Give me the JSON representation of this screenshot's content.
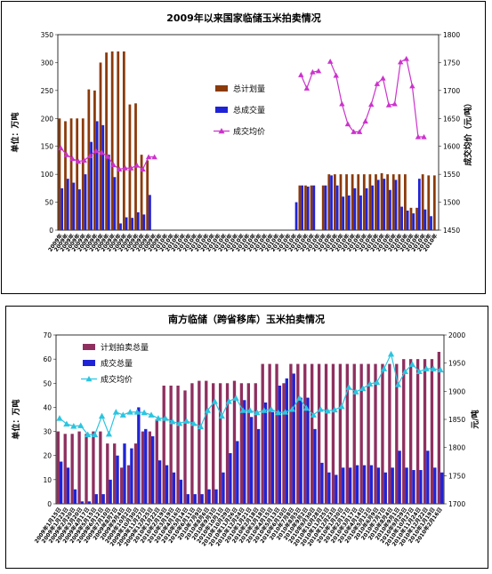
{
  "chart_data": [
    {
      "type": "bar",
      "title": "2009年以来国家临储玉米拍卖情况",
      "ylabel": "单位：万吨",
      "y2label": "成交均价（元/吨）",
      "ylim": [
        0,
        350
      ],
      "y2lim": [
        1450,
        1800
      ],
      "yticks": [
        "0",
        "50",
        "100",
        "150",
        "200",
        "250",
        "300",
        "350"
      ],
      "y2ticks": [
        "1450",
        "1500",
        "1550",
        "1600",
        "1650",
        "1700",
        "1750",
        "1800"
      ],
      "legend_position": "right",
      "series": [
        {
          "name": "总计划量",
          "color": "#8B3A0A",
          "values": [
            200,
            195,
            200,
            200,
            200,
            252,
            250,
            300,
            318,
            320,
            320,
            320,
            225,
            227,
            135,
            125,
            0,
            0,
            0,
            0,
            0,
            0,
            0,
            0,
            0,
            0,
            0,
            0,
            0,
            0,
            0,
            0,
            0,
            0,
            0,
            0,
            0,
            0,
            0,
            0,
            0,
            80,
            80,
            80,
            0,
            80,
            100,
            100,
            100,
            100,
            100,
            100,
            100,
            100,
            100,
            102,
            100,
            100,
            100,
            100,
            40,
            40,
            100,
            98,
            98
          ]
        },
        {
          "name": "总成交量",
          "color": "#1F23D6",
          "values": [
            75,
            92,
            85,
            73,
            100,
            158,
            195,
            188,
            135,
            95,
            12,
            23,
            22,
            32,
            28,
            63,
            0,
            0,
            0,
            0,
            0,
            0,
            0,
            0,
            0,
            0,
            0,
            0,
            0,
            0,
            0,
            0,
            0,
            0,
            0,
            0,
            0,
            0,
            0,
            0,
            50,
            80,
            78,
            80,
            0,
            80,
            98,
            80,
            60,
            62,
            75,
            62,
            75,
            80,
            90,
            92,
            72,
            90,
            42,
            35,
            30,
            92,
            37,
            25,
            0
          ]
        },
        {
          "name": "成交均价",
          "color": "#CC33CC",
          "marker": "triangle",
          "values": [
            1597,
            1585,
            1578,
            1573,
            1575,
            1583,
            1592,
            1589,
            1582,
            1567,
            1559,
            1561,
            1561,
            1566,
            1559,
            1581,
            1581,
            null,
            null,
            null,
            null,
            null,
            null,
            null,
            null,
            null,
            null,
            null,
            null,
            null,
            null,
            null,
            null,
            null,
            null,
            null,
            null,
            null,
            null,
            null,
            null,
            1728,
            1704,
            1733,
            1735,
            null,
            1752,
            1727,
            1676,
            1640,
            1626,
            1626,
            1645,
            1675,
            1712,
            1722,
            1674,
            1676,
            1751,
            1757,
            1708,
            1617,
            1617,
            null,
            null
          ]
        }
      ],
      "categories": [
        "2009年",
        "2009年",
        "2009年",
        "2009年",
        "2009年",
        "2009年",
        "2009年",
        "2009年",
        "2009年",
        "2009年",
        "2009年",
        "2009年",
        "2009年",
        "2009年",
        "2009年",
        "2009年",
        "2009年",
        "2009年",
        "2010年",
        "2010年",
        "2010年",
        "2010年",
        "2010年",
        "2010年",
        "2010年",
        "2010年",
        "2010年",
        "2010年",
        "2010年",
        "2010年",
        "2010年",
        "2010年",
        "2010年",
        "2010年",
        "2010年",
        "2010年",
        "2010年",
        "2010年",
        "2010年",
        "2010年",
        "2010年",
        "2010年",
        "2010年",
        "2010年",
        "2010年",
        "2010年",
        "2010年",
        "2010年",
        "2010年",
        "2010年",
        "2010年",
        "2010年",
        "2010年",
        "2010年",
        "2010年",
        "2010年",
        "2010年",
        "2010年",
        "2010年",
        "2010年",
        "2010年",
        "2010年",
        "2010年",
        "2010年",
        "2010年"
      ]
    },
    {
      "type": "bar",
      "title": "南方临储（跨省移库）玉米拍卖情况",
      "ylabel": "单位：万吨",
      "y2label": "元/吨",
      "ylim": [
        0,
        70
      ],
      "y2lim": [
        1700,
        2000
      ],
      "yticks": [
        "0",
        "10",
        "20",
        "30",
        "40",
        "50",
        "60",
        "70"
      ],
      "y2ticks": [
        "1700",
        "1750",
        "1800",
        "1850",
        "1900",
        "1950",
        "2000"
      ],
      "legend_position": "top-left",
      "series": [
        {
          "name": "计划拍卖总量",
          "color": "#8E2F5F",
          "values": [
            30,
            29,
            29,
            30,
            29,
            30,
            30,
            25,
            25,
            15,
            16,
            25,
            30,
            30,
            35,
            49,
            49,
            49,
            47,
            50,
            51,
            51,
            50,
            50,
            50,
            51,
            50,
            50,
            50,
            58,
            58,
            58,
            50,
            58,
            58,
            58,
            58,
            58,
            58,
            58,
            58,
            58,
            58,
            58,
            58,
            58,
            58,
            58,
            58,
            60,
            60,
            60,
            60,
            60,
            63
          ]
        },
        {
          "name": "成交总量",
          "color": "#1F23D6",
          "values": [
            17.5,
            15,
            6,
            1,
            1,
            4,
            4,
            10,
            20,
            25,
            23,
            40,
            31,
            28,
            18,
            16,
            13,
            10,
            4,
            4,
            4,
            6,
            6,
            13,
            21,
            26,
            43,
            36,
            31,
            42,
            38,
            49,
            52,
            54,
            44,
            44,
            31,
            17,
            13,
            12,
            15,
            15,
            16,
            16,
            16,
            15,
            13,
            15,
            22,
            15,
            14,
            14,
            22,
            15,
            13
          ]
        },
        {
          "name": "成交均价",
          "color": "#2BC5E0",
          "marker": "triangle",
          "values": [
            1852,
            1842,
            1838,
            1839,
            1823,
            1823,
            1856,
            1824,
            1863,
            1858,
            1863,
            1863,
            1862,
            1858,
            1852,
            1852,
            1846,
            1843,
            1847,
            1843,
            1837,
            1866,
            1882,
            1856,
            1882,
            1888,
            1866,
            1866,
            1862,
            1866,
            1868,
            1862,
            1863,
            1868,
            1888,
            1870,
            1858,
            1868,
            1865,
            1867,
            1873,
            1907,
            1899,
            1905,
            1913,
            1916,
            1940,
            1966,
            1912,
            1935,
            1948,
            1935,
            1940,
            1940,
            1938
          ]
        }
      ],
      "categories": [
        "2009年1月15日",
        "2009年1月23日",
        "2009年2月20日",
        "2009年3月20日",
        "2009年4月17日",
        "2009年5月15日",
        "2009年6月12日",
        "2009年7月10日",
        "2009年8月7日",
        "2009年9月4日",
        "2009年10月2日",
        "2009年10月30日",
        "2009年11月27日",
        "2009年12月25日",
        "2010年1月22日",
        "2010年2月19日",
        "2010年3月19日",
        "2010年4月16日",
        "2010年5月14日",
        "2010年6月11日",
        "2010年7月9日",
        "2010年8月6日",
        "2010年9月3日",
        "2010年10月1日",
        "2010年10月29日",
        "2010年11月26日",
        "2010年12月24日",
        "2010年1月21日",
        "2010年2月18日",
        "2010年3月18日",
        "2010年4月15日",
        "2010年5月13日",
        "2010年6月10日",
        "2010年7月8日",
        "2010年8月5日",
        "2010年9月2日",
        "2010年9月30日",
        "2010年10月28日",
        "2010年11月25日",
        "2010年12月23日",
        "2010年1月20日",
        "2010年2月17日",
        "2010年3月17日",
        "2010年4月14日",
        "2010年5月12日",
        "2010年6月9日",
        "2010年7月7日",
        "2010年8月4日",
        "2010年9月1日",
        "2010年9月29日",
        "2010年10月27日",
        "2010年11月24日",
        "2010年12月22日",
        "2010年1月19日",
        "2010年2月16日"
      ]
    }
  ]
}
